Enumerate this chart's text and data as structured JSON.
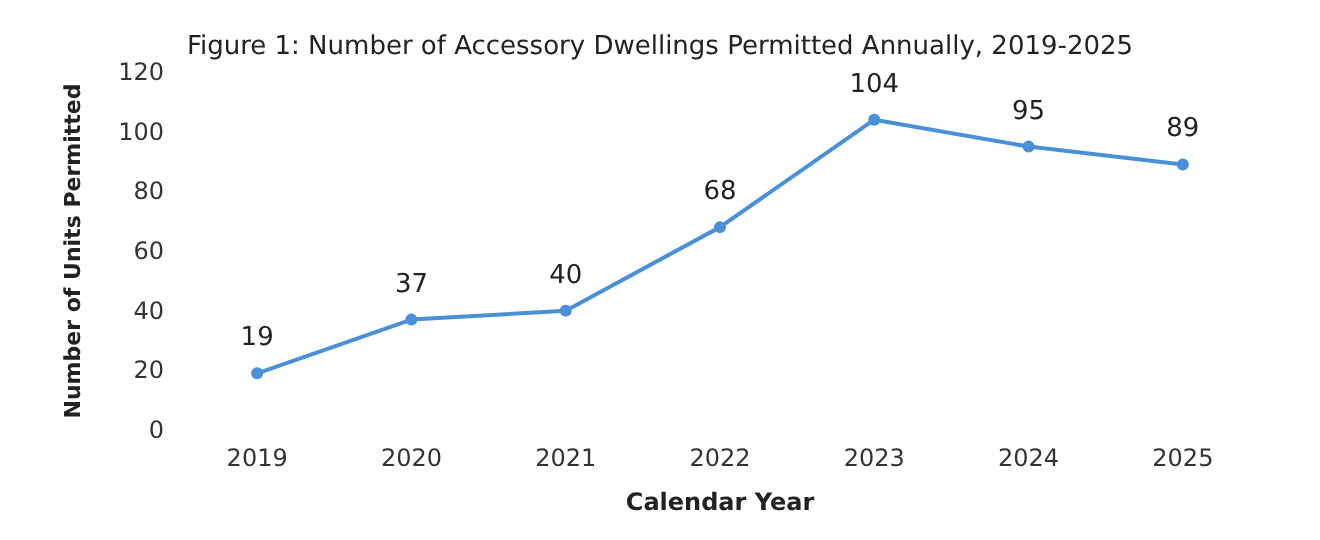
{
  "chart_data": {
    "type": "line",
    "title": "Figure 1: Number of Accessory Dwellings Permitted Annually, 2019-2025",
    "xlabel": "Calendar Year",
    "ylabel": "Number of Units Permitted",
    "categories": [
      "2019",
      "2020",
      "2021",
      "2022",
      "2023",
      "2024",
      "2025"
    ],
    "series": [
      {
        "color": "#4a90d9",
        "values": [
          19,
          37,
          40,
          68,
          104,
          95,
          89
        ]
      }
    ],
    "ylim": [
      0,
      120
    ],
    "yticks": [
      0,
      20,
      40,
      60,
      80,
      100,
      120
    ],
    "grid": false,
    "data_labels": true,
    "marker": "circle",
    "line_style": "solid"
  }
}
